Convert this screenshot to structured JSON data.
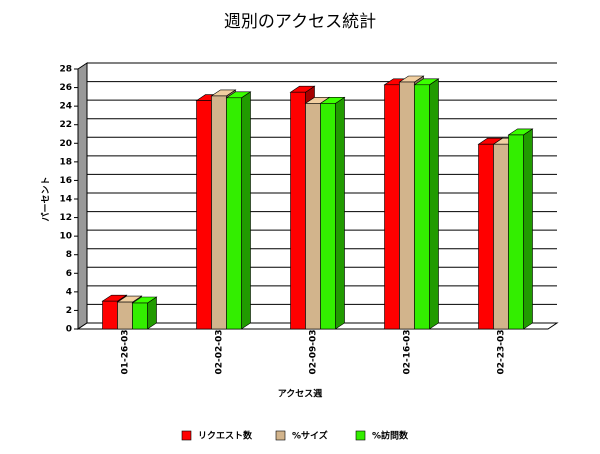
{
  "chart_data": {
    "type": "bar3d",
    "title": "週別のアクセス統計",
    "x_label": "アクセス週",
    "y_label": "パーセント",
    "categories": [
      "01-26-03",
      "02-02-03",
      "02-09-03",
      "02-16-03",
      "02-23-03"
    ],
    "series": [
      {
        "name": "リクエスト数",
        "color": "#ff0000",
        "values": [
          3.0,
          24.6,
          25.5,
          26.3,
          19.9
        ]
      },
      {
        "name": "%サイズ",
        "color": "#d2b48c",
        "values": [
          2.9,
          25.1,
          24.3,
          26.6,
          19.9
        ]
      },
      {
        "name": "%訪問数",
        "color": "#33ee00",
        "values": [
          2.8,
          24.9,
          24.3,
          26.3,
          20.9
        ]
      }
    ],
    "ylim": [
      0,
      28
    ],
    "yticks": [
      0,
      2,
      4,
      6,
      8,
      10,
      12,
      14,
      16,
      18,
      20,
      22,
      24,
      26,
      28
    ],
    "grid": true,
    "legend": "bottom"
  }
}
